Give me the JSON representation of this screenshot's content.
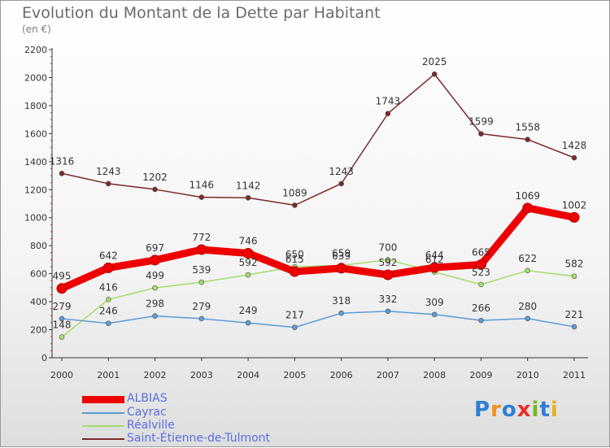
{
  "page": {
    "title": "Evolution du Montant de la Dette par Habitant",
    "subtitle": "(en €)"
  },
  "logo": {
    "text": "Proxiti"
  },
  "chart_data": {
    "type": "line",
    "title": "Evolution du Montant de la Dette par Habitant",
    "subtitle": "(en €)",
    "x": [
      "2000",
      "2001",
      "2002",
      "2003",
      "2004",
      "2005",
      "2006",
      "2007",
      "2008",
      "2009",
      "2010",
      "2011"
    ],
    "ylim": [
      0,
      2200
    ],
    "yticks": [
      0,
      200,
      400,
      600,
      800,
      1000,
      1200,
      1400,
      1600,
      1800,
      2000,
      2200
    ],
    "grid": false,
    "legend_position": "bottom-left",
    "series": [
      {
        "name": "Saint-Étienne-de-Tulmont",
        "color": "#7b2a2a",
        "values": [
          1316,
          1243,
          1202,
          1146,
          1142,
          1089,
          1243,
          1743,
          2025,
          1599,
          1558,
          1428
        ]
      },
      {
        "name": "Réalville",
        "color": "#a6dc6c",
        "values": [
          148,
          416,
          499,
          539,
          592,
          650,
          659,
          700,
          612,
          523,
          622,
          582
        ]
      },
      {
        "name": "Cayrac",
        "color": "#5c9bd5",
        "values": [
          279,
          246,
          298,
          279,
          249,
          217,
          318,
          332,
          309,
          266,
          280,
          221
        ]
      },
      {
        "name": "ALBIAS",
        "color": "#ee0000",
        "values": [
          495,
          642,
          697,
          772,
          746,
          615,
          639,
          592,
          644,
          665,
          1069,
          1002
        ]
      }
    ],
    "legend_order": [
      "ALBIAS",
      "Cayrac",
      "Réalville",
      "Saint-Étienne-de-Tulmont"
    ]
  }
}
